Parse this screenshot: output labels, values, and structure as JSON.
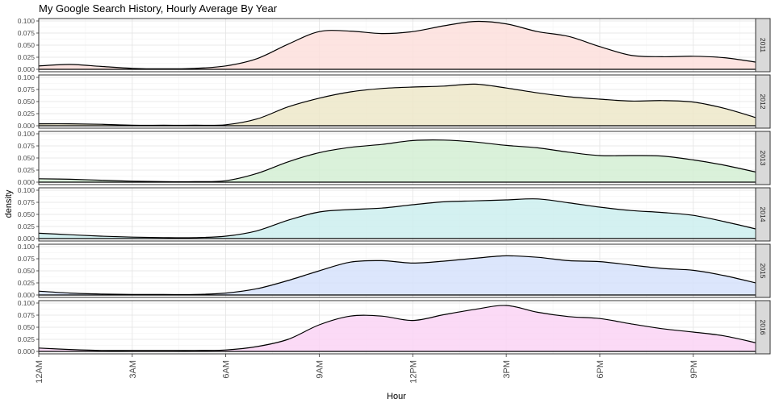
{
  "chart_data": {
    "type": "area",
    "title": "My Google Search History, Hourly Average By Year",
    "xlabel": "Hour",
    "ylabel": "density",
    "x_ticks": [
      {
        "value": 0,
        "label": "12AM"
      },
      {
        "value": 3,
        "label": "3AM"
      },
      {
        "value": 6,
        "label": "6AM"
      },
      {
        "value": 9,
        "label": "9AM"
      },
      {
        "value": 12,
        "label": "12PM"
      },
      {
        "value": 15,
        "label": "3PM"
      },
      {
        "value": 18,
        "label": "6PM"
      },
      {
        "value": 21,
        "label": "9PM"
      }
    ],
    "xlim": [
      0,
      23
    ],
    "ylim": [
      0,
      0.1
    ],
    "y_ticks": [
      {
        "value": 0,
        "label": "0.000"
      },
      {
        "value": 0.025,
        "label": "0.025"
      },
      {
        "value": 0.05,
        "label": "0.050"
      },
      {
        "value": 0.075,
        "label": "0.075"
      },
      {
        "value": 0.1,
        "label": "0.100"
      }
    ],
    "grid": true,
    "facet_strip_color": "#d9d9d9",
    "series": [
      {
        "name": "2011",
        "fill": "#fddfdc",
        "x": [
          0,
          1,
          2,
          3,
          4,
          5,
          6,
          7,
          8,
          9,
          10,
          11,
          12,
          13,
          14,
          15,
          16,
          17,
          18,
          19,
          20,
          21,
          22,
          23
        ],
        "values": [
          0.007,
          0.01,
          0.006,
          0.002,
          0.001,
          0.002,
          0.007,
          0.022,
          0.052,
          0.078,
          0.079,
          0.074,
          0.078,
          0.09,
          0.099,
          0.094,
          0.078,
          0.068,
          0.047,
          0.029,
          0.026,
          0.027,
          0.024,
          0.015
        ]
      },
      {
        "name": "2012",
        "fill": "#ede7c9",
        "x": [
          0,
          1,
          2,
          3,
          4,
          5,
          6,
          7,
          8,
          9,
          10,
          11,
          12,
          13,
          14,
          15,
          16,
          17,
          18,
          19,
          20,
          21,
          22,
          23
        ],
        "values": [
          0.004,
          0.004,
          0.003,
          0.001,
          0.001,
          0.001,
          0.002,
          0.014,
          0.039,
          0.057,
          0.07,
          0.077,
          0.08,
          0.082,
          0.086,
          0.078,
          0.068,
          0.06,
          0.055,
          0.051,
          0.052,
          0.049,
          0.036,
          0.017
        ]
      },
      {
        "name": "2013",
        "fill": "#d4efd4",
        "x": [
          0,
          1,
          2,
          3,
          4,
          5,
          6,
          7,
          8,
          9,
          10,
          11,
          12,
          13,
          14,
          15,
          16,
          17,
          18,
          19,
          20,
          21,
          22,
          23
        ],
        "values": [
          0.007,
          0.006,
          0.004,
          0.002,
          0.001,
          0.001,
          0.003,
          0.018,
          0.042,
          0.061,
          0.072,
          0.078,
          0.086,
          0.087,
          0.083,
          0.076,
          0.071,
          0.062,
          0.055,
          0.055,
          0.054,
          0.046,
          0.035,
          0.021
        ]
      },
      {
        "name": "2014",
        "fill": "#cdeeef",
        "x": [
          0,
          1,
          2,
          3,
          4,
          5,
          6,
          7,
          8,
          9,
          10,
          11,
          12,
          13,
          14,
          15,
          16,
          17,
          18,
          19,
          20,
          21,
          22,
          23
        ],
        "values": [
          0.011,
          0.008,
          0.005,
          0.003,
          0.002,
          0.002,
          0.005,
          0.016,
          0.038,
          0.055,
          0.06,
          0.063,
          0.07,
          0.076,
          0.078,
          0.08,
          0.082,
          0.074,
          0.065,
          0.058,
          0.054,
          0.048,
          0.035,
          0.02
        ]
      },
      {
        "name": "2015",
        "fill": "#d6e2fb",
        "x": [
          0,
          1,
          2,
          3,
          4,
          5,
          6,
          7,
          8,
          9,
          10,
          11,
          12,
          13,
          14,
          15,
          16,
          17,
          18,
          19,
          20,
          21,
          22,
          23
        ],
        "values": [
          0.008,
          0.004,
          0.002,
          0.001,
          0.001,
          0.001,
          0.004,
          0.013,
          0.03,
          0.05,
          0.068,
          0.071,
          0.066,
          0.07,
          0.076,
          0.081,
          0.078,
          0.071,
          0.069,
          0.062,
          0.055,
          0.051,
          0.04,
          0.025
        ]
      },
      {
        "name": "2016",
        "fill": "#fad4f5",
        "x": [
          0,
          1,
          2,
          3,
          4,
          5,
          6,
          7,
          8,
          9,
          10,
          11,
          12,
          13,
          14,
          15,
          16,
          17,
          18,
          19,
          20,
          21,
          22,
          23
        ],
        "values": [
          0.007,
          0.004,
          0.002,
          0.002,
          0.002,
          0.002,
          0.003,
          0.01,
          0.025,
          0.055,
          0.073,
          0.073,
          0.064,
          0.076,
          0.087,
          0.095,
          0.081,
          0.072,
          0.068,
          0.057,
          0.047,
          0.04,
          0.032,
          0.018
        ]
      }
    ]
  }
}
